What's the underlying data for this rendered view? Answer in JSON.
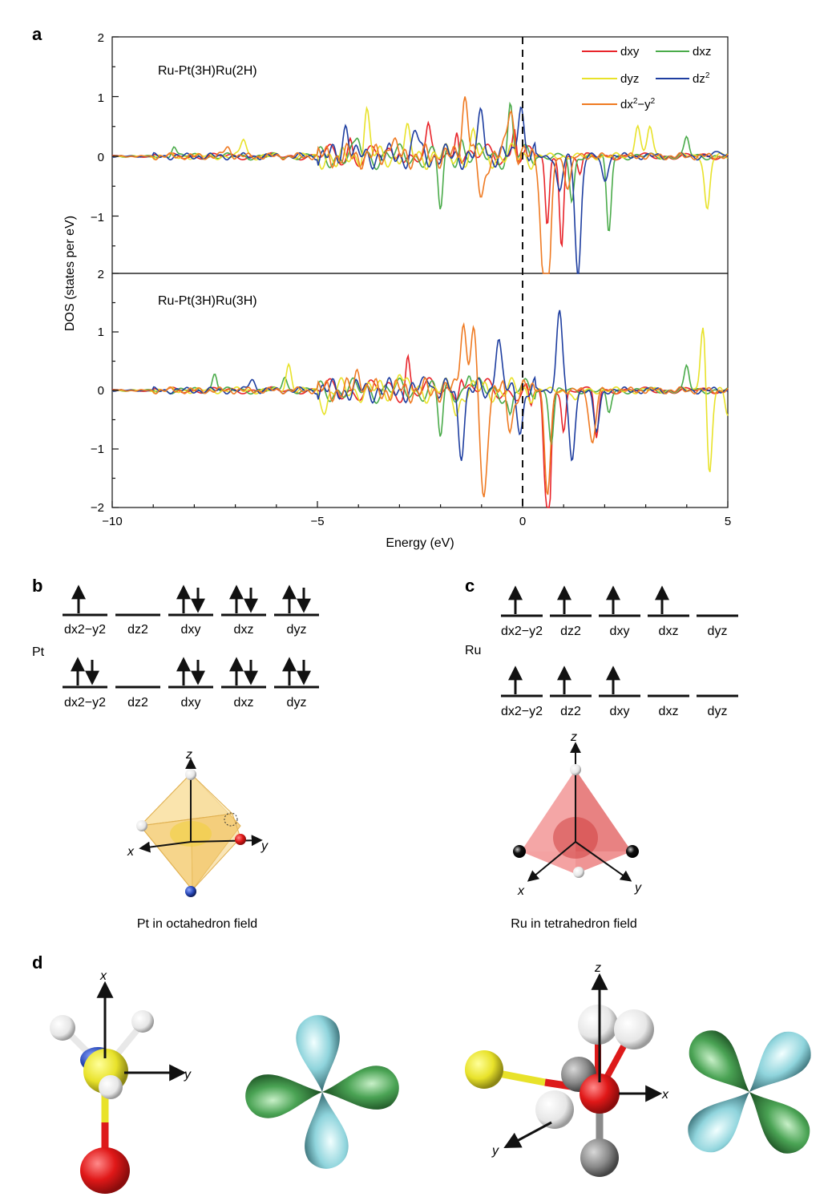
{
  "panels": {
    "a": "a",
    "b": "b",
    "c": "c",
    "d": "d"
  },
  "chart_data": {
    "type": "line",
    "xlabel": "Energy (eV)",
    "ylabel": "DOS (states per eV)",
    "xlim": [
      -10,
      5
    ],
    "ylim": [
      -2,
      2
    ],
    "x_ticks": [
      -10,
      -5,
      0,
      5
    ],
    "x_tick_labels": [
      "−10",
      "−5",
      "0",
      "5"
    ],
    "top": {
      "title": "Ru-Pt(3H)Ru(2H)",
      "y_ticks": [
        2,
        1,
        0,
        -1
      ],
      "y_tick_labels": [
        "2",
        "1",
        "0",
        "−1"
      ],
      "series": [
        {
          "name": "dxy",
          "peaks": [
            [
              -4.2,
              0.3
            ],
            [
              -3.0,
              0.25
            ],
            [
              -2.3,
              0.35
            ],
            [
              -1.6,
              0.6
            ],
            [
              -0.2,
              0.6
            ],
            [
              0.6,
              -1.2
            ],
            [
              0.95,
              -1.5
            ],
            [
              1.4,
              -0.3
            ]
          ]
        },
        {
          "name": "dxz",
          "peaks": [
            [
              -8.5,
              0.2
            ],
            [
              -4.0,
              0.25
            ],
            [
              -2.0,
              -0.9
            ],
            [
              -1.5,
              0.3
            ],
            [
              -0.3,
              0.8
            ],
            [
              1.2,
              -0.8
            ],
            [
              2.1,
              -1.3
            ],
            [
              4.0,
              0.3
            ]
          ]
        },
        {
          "name": "dyz",
          "peaks": [
            [
              -6.8,
              0.3
            ],
            [
              -4.5,
              -0.2
            ],
            [
              -3.8,
              0.7
            ],
            [
              -2.8,
              0.35
            ],
            [
              -1.2,
              0.3
            ],
            [
              2.8,
              0.55
            ],
            [
              3.1,
              0.5
            ],
            [
              4.5,
              -0.9
            ]
          ]
        },
        {
          "name": "dz2",
          "peaks": [
            [
              -4.3,
              0.55
            ],
            [
              -2.6,
              0.4
            ],
            [
              -1.0,
              0.7
            ],
            [
              -0.05,
              0.95
            ],
            [
              0.9,
              -0.6
            ],
            [
              1.35,
              -2.0
            ],
            [
              2.0,
              -0.4
            ],
            [
              4.8,
              0.1
            ]
          ]
        },
        {
          "name": "dx2-y2",
          "peaks": [
            [
              -7.2,
              0.15
            ],
            [
              -3.2,
              0.3
            ],
            [
              -1.4,
              1.0
            ],
            [
              -1.0,
              -0.7
            ],
            [
              -0.3,
              0.85
            ],
            [
              0.5,
              -1.6
            ],
            [
              0.62,
              -2.0
            ],
            [
              1.1,
              -0.5
            ]
          ]
        }
      ]
    },
    "bottom": {
      "title": "Ru-Pt(3H)Ru(3H)",
      "y_ticks": [
        1,
        0,
        -1,
        -2
      ],
      "y_tick_labels": [
        "1",
        "0",
        "−1",
        "−2"
      ],
      "series": [
        {
          "name": "dxy",
          "peaks": [
            [
              -2.8,
              0.6
            ],
            [
              -1.5,
              0.35
            ],
            [
              0.2,
              -0.4
            ],
            [
              0.55,
              -1.5
            ],
            [
              0.65,
              -2.0
            ],
            [
              1.0,
              -0.7
            ],
            [
              1.8,
              -0.8
            ]
          ]
        },
        {
          "name": "dxz",
          "peaks": [
            [
              -7.5,
              0.3
            ],
            [
              -5.8,
              0.25
            ],
            [
              -2.0,
              -0.8
            ],
            [
              -1.3,
              0.35
            ],
            [
              -0.3,
              -0.5
            ],
            [
              0.7,
              -0.9
            ],
            [
              2.1,
              -0.4
            ],
            [
              4.0,
              0.4
            ]
          ]
        },
        {
          "name": "dyz",
          "peaks": [
            [
              -5.7,
              0.45
            ],
            [
              -4.8,
              -0.3
            ],
            [
              -3.0,
              0.4
            ],
            [
              -1.6,
              -0.4
            ],
            [
              1.3,
              -0.2
            ],
            [
              4.4,
              1.2
            ],
            [
              4.55,
              -1.5
            ],
            [
              5.0,
              -0.4
            ]
          ]
        },
        {
          "name": "dz2",
          "peaks": [
            [
              -6.6,
              0.2
            ],
            [
              -2.3,
              0.3
            ],
            [
              -1.5,
              -1.0
            ],
            [
              -0.6,
              0.9
            ],
            [
              -0.05,
              -0.6
            ],
            [
              0.9,
              1.35
            ],
            [
              1.2,
              -1.2
            ],
            [
              1.8,
              -0.7
            ]
          ]
        },
        {
          "name": "dx2-y2",
          "peaks": [
            [
              -4.0,
              0.35
            ],
            [
              -1.45,
              1.15
            ],
            [
              -1.2,
              0.9
            ],
            [
              -0.95,
              -1.9
            ],
            [
              -0.3,
              -0.6
            ],
            [
              0.5,
              0.3
            ],
            [
              0.6,
              -1.9
            ],
            [
              1.7,
              -0.9
            ]
          ]
        }
      ]
    },
    "legend": [
      {
        "name": "dxy",
        "color": "#e8242a"
      },
      {
        "name": "dxz",
        "color": "#4aab4a"
      },
      {
        "name": "dyz",
        "color": "#e8e22a"
      },
      {
        "name": "dz2",
        "color": "#1e3ea0"
      },
      {
        "name": "dx2-y2",
        "color": "#ef7a22"
      }
    ],
    "legend_labels": {
      "dxy": "dxy",
      "dxz": "dxz",
      "dyz": "dyz",
      "dz_base": "dz",
      "dz_sup": "2",
      "dx_base": "dx",
      "dx_sup1": "2",
      "dx_mid": "−y",
      "dx_sup2": "2"
    }
  },
  "panel_b": {
    "element": "Pt",
    "rows": [
      {
        "orbitals": [
          {
            "label": "dx2−y2",
            "spins": [
              "up"
            ]
          },
          {
            "label": "dz2",
            "spins": []
          },
          {
            "label": "dxy",
            "spins": [
              "up",
              "down"
            ]
          },
          {
            "label": "dxz",
            "spins": [
              "up",
              "down"
            ]
          },
          {
            "label": "dyz",
            "spins": [
              "up",
              "down"
            ]
          }
        ]
      },
      {
        "orbitals": [
          {
            "label": "dx2−y2",
            "spins": [
              "up",
              "down"
            ]
          },
          {
            "label": "dz2",
            "spins": []
          },
          {
            "label": "dxy",
            "spins": [
              "up",
              "down"
            ]
          },
          {
            "label": "dxz",
            "spins": [
              "up",
              "down"
            ]
          },
          {
            "label": "dyz",
            "spins": [
              "up",
              "down"
            ]
          }
        ]
      }
    ],
    "caption": "Pt in octahedron field",
    "axes": {
      "x": "x",
      "y": "y",
      "z": "z"
    }
  },
  "panel_c": {
    "element": "Ru",
    "rows": [
      {
        "orbitals": [
          {
            "label": "dx2−y2",
            "spins": [
              "up"
            ]
          },
          {
            "label": "dz2",
            "spins": [
              "up"
            ]
          },
          {
            "label": "dxy",
            "spins": [
              "up"
            ]
          },
          {
            "label": "dxz",
            "spins": [
              "up"
            ]
          },
          {
            "label": "dyz",
            "spins": []
          }
        ]
      },
      {
        "orbitals": [
          {
            "label": "dx2−y2",
            "spins": [
              "up"
            ]
          },
          {
            "label": "dz2",
            "spins": [
              "up"
            ]
          },
          {
            "label": "dxy",
            "spins": [
              "up"
            ]
          },
          {
            "label": "dxz",
            "spins": []
          },
          {
            "label": "dyz",
            "spins": []
          }
        ]
      }
    ],
    "caption": "Ru in tetrahedron field",
    "axes": {
      "x": "x",
      "y": "y",
      "z": "z"
    }
  },
  "panel_d": {
    "left_axes": {
      "x": "x",
      "y": "y"
    },
    "right_axes": {
      "x": "x",
      "y": "y",
      "z": "z"
    }
  },
  "colors": {
    "axis": "#111111",
    "octahedron": "#f4c860",
    "tetrahedron": "#e86c6c",
    "lobe_green": "#3f9a4a",
    "lobe_cyan": "#8fd4dc",
    "atom_red": "#dd1a1a",
    "atom_yellow": "#e8e22a",
    "atom_grey": "#8a8a8a",
    "atom_blue": "#223c9a"
  }
}
